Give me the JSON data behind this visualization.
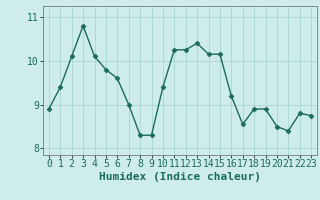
{
  "x": [
    0,
    1,
    2,
    3,
    4,
    5,
    6,
    7,
    8,
    9,
    10,
    11,
    12,
    13,
    14,
    15,
    16,
    17,
    18,
    19,
    20,
    21,
    22,
    23
  ],
  "y": [
    8.9,
    9.4,
    10.1,
    10.8,
    10.1,
    9.8,
    9.6,
    9.0,
    8.3,
    8.3,
    9.4,
    10.25,
    10.25,
    10.4,
    10.15,
    10.15,
    9.2,
    8.55,
    8.9,
    8.9,
    8.5,
    8.4,
    8.8,
    8.75
  ],
  "line_color": "#1a6b5e",
  "marker": "D",
  "marker_size": 2.5,
  "bg_color": "#ceecea",
  "grid_color": "#aad6d2",
  "xlabel": "Humidex (Indice chaleur)",
  "ylabel": "",
  "xlim": [
    -0.5,
    23.5
  ],
  "ylim": [
    7.85,
    11.25
  ],
  "yticks": [
    8,
    9,
    10,
    11
  ],
  "xticks": [
    0,
    1,
    2,
    3,
    4,
    5,
    6,
    7,
    8,
    9,
    10,
    11,
    12,
    13,
    14,
    15,
    16,
    17,
    18,
    19,
    20,
    21,
    22,
    23
  ],
  "xlabel_fontsize": 8,
  "tick_fontsize": 7
}
